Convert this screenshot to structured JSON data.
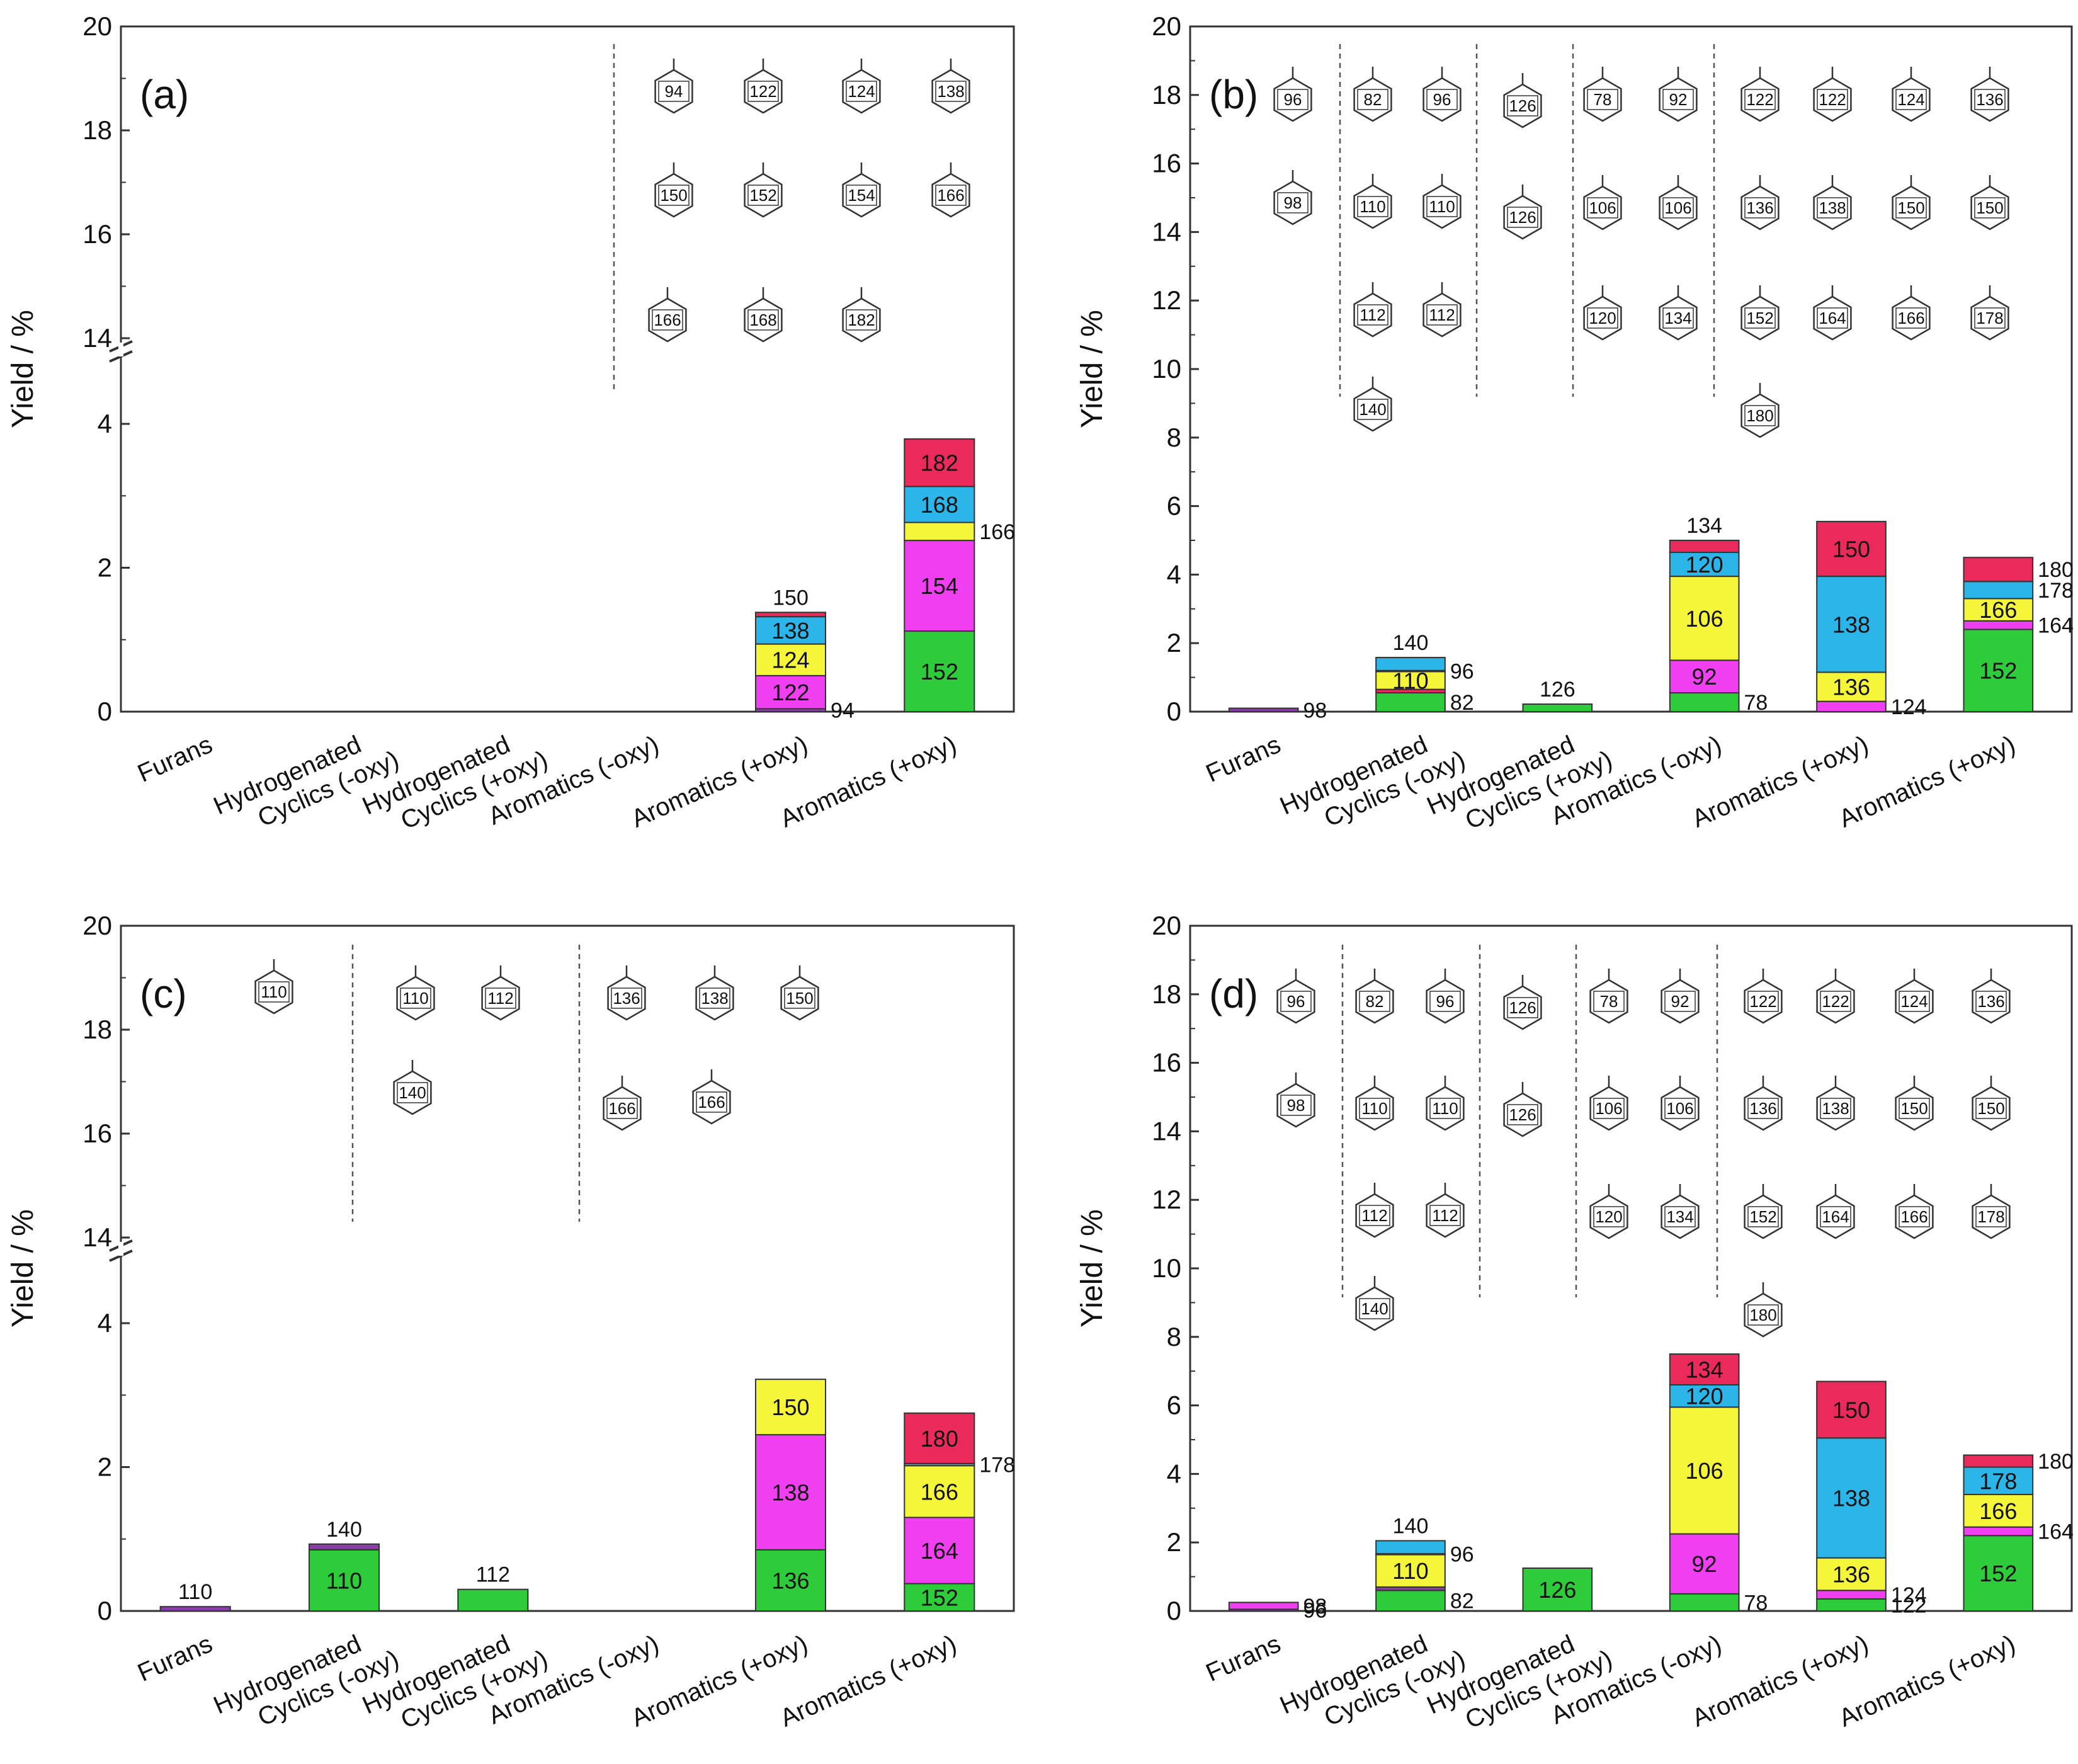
{
  "figure": {
    "y_axis_label": "Yield / %"
  },
  "colors": {
    "green": "#2ecc3b",
    "magenta": "#f03ff0",
    "yellow": "#f5f53a",
    "cyan": "#2bb5e8",
    "red": "#ea2a5a",
    "purple": "#8a3fa8",
    "frame": "#333333",
    "dash": "#555555",
    "ring": "#333333"
  },
  "chart_data": [
    {
      "panel": "(a)",
      "type": "bar",
      "stacked": true,
      "ylabel": "Yield / %",
      "ylim": [
        0,
        20
      ],
      "axis_break": [
        5,
        14
      ],
      "yticks": [
        "0",
        "2",
        "4",
        "14",
        "16",
        "18",
        "20"
      ],
      "categories": [
        "Furans",
        "Hydrogenated Cyclics (-oxy)",
        "Hydrogenated Cyclics (+oxy)",
        "Aromatics (-oxy)",
        "Aromatics (+oxy)",
        "Aromatics (+oxy)"
      ],
      "bars": [
        {
          "category": 0,
          "segments": []
        },
        {
          "category": 1,
          "segments": []
        },
        {
          "category": 2,
          "segments": []
        },
        {
          "category": 3,
          "segments": []
        },
        {
          "category": 4,
          "segments": [
            {
              "label": "94",
              "value": 0.04,
              "color": "purple",
              "label_pos": "right"
            },
            {
              "label": "122",
              "value": 0.46,
              "color": "magenta",
              "label_pos": "inside"
            },
            {
              "label": "124",
              "value": 0.44,
              "color": "yellow",
              "label_pos": "inside"
            },
            {
              "label": "138",
              "value": 0.38,
              "color": "cyan",
              "label_pos": "inside"
            },
            {
              "label": "150",
              "value": 0.06,
              "color": "red",
              "label_pos": "top"
            }
          ]
        },
        {
          "category": 5,
          "segments": [
            {
              "label": "152",
              "value": 1.12,
              "color": "green",
              "label_pos": "inside"
            },
            {
              "label": "154",
              "value": 1.26,
              "color": "magenta",
              "label_pos": "inside"
            },
            {
              "label": "166",
              "value": 0.25,
              "color": "yellow",
              "label_pos": "right"
            },
            {
              "label": "168",
              "value": 0.5,
              "color": "cyan",
              "label_pos": "inside"
            },
            {
              "label": "182",
              "value": 0.66,
              "color": "red",
              "label_pos": "inside"
            }
          ]
        }
      ],
      "structure_labels": [
        "94",
        "122",
        "124",
        "138",
        "150",
        "152",
        "154",
        "166",
        "166",
        "168",
        "182"
      ]
    },
    {
      "panel": "(b)",
      "type": "bar",
      "stacked": true,
      "ylabel": "Yield / %",
      "ylim": [
        0,
        20
      ],
      "yticks": [
        "0",
        "2",
        "4",
        "6",
        "8",
        "10",
        "12",
        "14",
        "16",
        "18",
        "20"
      ],
      "categories": [
        "Furans",
        "Hydrogenated Cyclics (-oxy)",
        "Hydrogenated Cyclics (+oxy)",
        "Aromatics (-oxy)",
        "Aromatics (+oxy)",
        "Aromatics (+oxy)"
      ],
      "bars": [
        {
          "category": 0,
          "segments": [
            {
              "label": "98",
              "value": 0.1,
              "color": "purple",
              "label_pos": "right"
            }
          ]
        },
        {
          "category": 1,
          "segments": [
            {
              "label": "82",
              "value": 0.55,
              "color": "green",
              "label_pos": "right"
            },
            {
              "label": "",
              "value": 0.1,
              "color": "red",
              "label_pos": "none"
            },
            {
              "label": "110",
              "value": 0.52,
              "color": "yellow",
              "label_pos": "inside"
            },
            {
              "label": "96",
              "value": 0.03,
              "color": "purple",
              "label_pos": "right"
            },
            {
              "label": "140",
              "value": 0.38,
              "color": "cyan",
              "label_pos": "top"
            }
          ]
        },
        {
          "category": 2,
          "segments": [
            {
              "label": "126",
              "value": 0.22,
              "color": "green",
              "label_pos": "top"
            }
          ]
        },
        {
          "category": 3,
          "segments": [
            {
              "label": "78",
              "value": 0.55,
              "color": "green",
              "label_pos": "right"
            },
            {
              "label": "92",
              "value": 0.95,
              "color": "magenta",
              "label_pos": "inside"
            },
            {
              "label": "106",
              "value": 2.45,
              "color": "yellow",
              "label_pos": "inside"
            },
            {
              "label": "120",
              "value": 0.7,
              "color": "cyan",
              "label_pos": "inside"
            },
            {
              "label": "134",
              "value": 0.35,
              "color": "red",
              "label_pos": "top"
            }
          ]
        },
        {
          "category": 4,
          "segments": [
            {
              "label": "124",
              "value": 0.3,
              "color": "magenta",
              "label_pos": "right"
            },
            {
              "label": "136",
              "value": 0.85,
              "color": "yellow",
              "label_pos": "inside"
            },
            {
              "label": "138",
              "value": 2.8,
              "color": "cyan",
              "label_pos": "inside"
            },
            {
              "label": "150",
              "value": 1.6,
              "color": "red",
              "label_pos": "inside"
            }
          ]
        },
        {
          "category": 5,
          "segments": [
            {
              "label": "152",
              "value": 2.4,
              "color": "green",
              "label_pos": "inside"
            },
            {
              "label": "164",
              "value": 0.25,
              "color": "magenta",
              "label_pos": "right"
            },
            {
              "label": "166",
              "value": 0.65,
              "color": "yellow",
              "label_pos": "inside"
            },
            {
              "label": "178",
              "value": 0.5,
              "color": "cyan",
              "label_pos": "right"
            },
            {
              "label": "180",
              "value": 0.7,
              "color": "red",
              "label_pos": "right"
            }
          ]
        }
      ],
      "structure_labels": [
        "96",
        "98",
        "82",
        "96",
        "110",
        "110",
        "112",
        "112",
        "140",
        "126",
        "126",
        "78",
        "92",
        "106",
        "106",
        "120",
        "134",
        "122",
        "122",
        "124",
        "136",
        "136",
        "138",
        "150",
        "150",
        "152",
        "164",
        "166",
        "178",
        "180"
      ]
    },
    {
      "panel": "(c)",
      "type": "bar",
      "stacked": true,
      "ylabel": "Yield / %",
      "ylim": [
        0,
        20
      ],
      "axis_break": [
        5,
        14
      ],
      "yticks": [
        "0",
        "2",
        "4",
        "14",
        "16",
        "18",
        "20"
      ],
      "categories": [
        "Furans",
        "Hydrogenated Cyclics (-oxy)",
        "Hydrogenated Cyclics (+oxy)",
        "Aromatics (-oxy)",
        "Aromatics (+oxy)",
        "Aromatics (+oxy)"
      ],
      "bars": [
        {
          "category": 0,
          "segments": [
            {
              "label": "110",
              "value": 0.06,
              "color": "purple",
              "label_pos": "top"
            }
          ]
        },
        {
          "category": 1,
          "segments": [
            {
              "label": "110",
              "value": 0.85,
              "color": "green",
              "label_pos": "inside"
            },
            {
              "label": "140",
              "value": 0.08,
              "color": "purple",
              "label_pos": "top"
            }
          ]
        },
        {
          "category": 2,
          "segments": [
            {
              "label": "112",
              "value": 0.3,
              "color": "green",
              "label_pos": "top"
            }
          ]
        },
        {
          "category": 3,
          "segments": []
        },
        {
          "category": 4,
          "segments": [
            {
              "label": "136",
              "value": 0.85,
              "color": "green",
              "label_pos": "inside"
            },
            {
              "label": "138",
              "value": 1.6,
              "color": "magenta",
              "label_pos": "inside"
            },
            {
              "label": "150",
              "value": 0.77,
              "color": "yellow",
              "label_pos": "inside"
            }
          ]
        },
        {
          "category": 5,
          "segments": [
            {
              "label": "152",
              "value": 0.38,
              "color": "green",
              "label_pos": "inside"
            },
            {
              "label": "164",
              "value": 0.92,
              "color": "magenta",
              "label_pos": "inside"
            },
            {
              "label": "166",
              "value": 0.72,
              "color": "yellow",
              "label_pos": "inside"
            },
            {
              "label": "178",
              "value": 0.03,
              "color": "cyan",
              "label_pos": "right"
            },
            {
              "label": "180",
              "value": 0.7,
              "color": "red",
              "label_pos": "inside"
            }
          ]
        }
      ],
      "structure_labels": [
        "110",
        "110",
        "112",
        "140",
        "136",
        "138",
        "150",
        "166",
        "166"
      ]
    },
    {
      "panel": "(d)",
      "type": "bar",
      "stacked": true,
      "ylabel": "Yield / %",
      "ylim": [
        0,
        20
      ],
      "yticks": [
        "0",
        "2",
        "4",
        "6",
        "8",
        "10",
        "12",
        "14",
        "16",
        "18",
        "20"
      ],
      "categories": [
        "Furans",
        "Hydrogenated Cyclics (-oxy)",
        "Hydrogenated Cyclics (+oxy)",
        "Aromatics (-oxy)",
        "Aromatics (+oxy)",
        "Aromatics (+oxy)"
      ],
      "bars": [
        {
          "category": 0,
          "segments": [
            {
              "label": "96",
              "value": 0.05,
              "color": "purple",
              "label_pos": "right"
            },
            {
              "label": "98",
              "value": 0.2,
              "color": "magenta",
              "label_pos": "right"
            }
          ]
        },
        {
          "category": 1,
          "segments": [
            {
              "label": "82",
              "value": 0.6,
              "color": "green",
              "label_pos": "right"
            },
            {
              "label": "",
              "value": 0.1,
              "color": "purple",
              "label_pos": "none"
            },
            {
              "label": "110",
              "value": 0.95,
              "color": "yellow",
              "label_pos": "inside"
            },
            {
              "label": "96",
              "value": 0.02,
              "color": "purple",
              "label_pos": "right"
            },
            {
              "label": "140",
              "value": 0.38,
              "color": "cyan",
              "label_pos": "top"
            }
          ]
        },
        {
          "category": 2,
          "segments": [
            {
              "label": "126",
              "value": 1.25,
              "color": "green",
              "label_pos": "inside"
            }
          ]
        },
        {
          "category": 3,
          "segments": [
            {
              "label": "78",
              "value": 0.5,
              "color": "green",
              "label_pos": "right"
            },
            {
              "label": "92",
              "value": 1.75,
              "color": "magenta",
              "label_pos": "inside"
            },
            {
              "label": "106",
              "value": 3.7,
              "color": "yellow",
              "label_pos": "inside"
            },
            {
              "label": "120",
              "value": 0.65,
              "color": "cyan",
              "label_pos": "inside"
            },
            {
              "label": "134",
              "value": 0.9,
              "color": "red",
              "label_pos": "inside"
            }
          ]
        },
        {
          "category": 4,
          "segments": [
            {
              "label": "122",
              "value": 0.35,
              "color": "green",
              "label_pos": "right"
            },
            {
              "label": "124",
              "value": 0.25,
              "color": "magenta",
              "label_pos": "right"
            },
            {
              "label": "136",
              "value": 0.95,
              "color": "yellow",
              "label_pos": "inside"
            },
            {
              "label": "138",
              "value": 3.5,
              "color": "cyan",
              "label_pos": "inside"
            },
            {
              "label": "150",
              "value": 1.65,
              "color": "red",
              "label_pos": "inside"
            }
          ]
        },
        {
          "category": 5,
          "segments": [
            {
              "label": "152",
              "value": 2.2,
              "color": "green",
              "label_pos": "inside"
            },
            {
              "label": "164",
              "value": 0.25,
              "color": "magenta",
              "label_pos": "right"
            },
            {
              "label": "166",
              "value": 0.95,
              "color": "yellow",
              "label_pos": "inside"
            },
            {
              "label": "178",
              "value": 0.8,
              "color": "cyan",
              "label_pos": "inside"
            },
            {
              "label": "180",
              "value": 0.35,
              "color": "red",
              "label_pos": "right"
            }
          ]
        }
      ],
      "structure_labels": [
        "96",
        "98",
        "82",
        "96",
        "110",
        "110",
        "112",
        "112",
        "140",
        "126",
        "126",
        "78",
        "92",
        "106",
        "106",
        "120",
        "134",
        "122",
        "122",
        "124",
        "136",
        "136",
        "138",
        "150",
        "150",
        "152",
        "164",
        "166",
        "178",
        "180"
      ]
    }
  ]
}
